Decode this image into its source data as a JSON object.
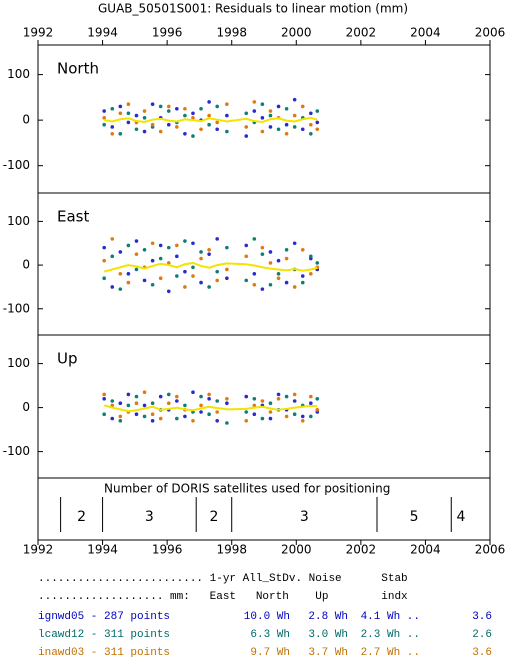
{
  "chart_data": {
    "type": "scatter",
    "title": "GUAB_50501S001: Residuals to linear motion (mm)",
    "xlim": [
      1992,
      2006
    ],
    "xticks": [
      1992,
      1994,
      1996,
      1998,
      2000,
      2002,
      2004,
      2006
    ],
    "ylim": [
      -160,
      165
    ],
    "yticks": [
      -100,
      0,
      100
    ],
    "x": [
      1994.05,
      1994.3,
      1994.55,
      1994.8,
      1995.05,
      1995.3,
      1995.55,
      1995.8,
      1996.05,
      1996.3,
      1996.55,
      1996.8,
      1997.05,
      1997.3,
      1997.55,
      1997.85,
      1998.45,
      1998.7,
      1998.95,
      1999.2,
      1999.45,
      1999.7,
      1999.95,
      2000.2,
      2000.45,
      2000.65
    ],
    "panels": [
      {
        "label": "North",
        "series": [
          {
            "color": "#2a2ad0",
            "values": [
              20,
              -15,
              30,
              -5,
              10,
              -25,
              35,
              5,
              -10,
              25,
              -30,
              15,
              0,
              40,
              -20,
              10,
              -35,
              20,
              5,
              -15,
              30,
              -10,
              45,
              -20,
              15,
              -5
            ]
          },
          {
            "color": "#0e7f74",
            "values": [
              -10,
              25,
              -30,
              15,
              -20,
              5,
              -15,
              30,
              20,
              -5,
              10,
              -35,
              25,
              -10,
              30,
              -25,
              15,
              -5,
              35,
              10,
              -20,
              25,
              -15,
              5,
              -30,
              20
            ]
          },
          {
            "color": "#e07a10",
            "values": [
              5,
              -30,
              15,
              35,
              -5,
              20,
              -10,
              -25,
              30,
              -15,
              25,
              5,
              -20,
              10,
              -5,
              35,
              -15,
              40,
              -25,
              20,
              5,
              -30,
              10,
              30,
              -10,
              -20
            ]
          }
        ],
        "trend": {
          "color": "#f2e400",
          "values": [
            0,
            -3,
            2,
            4,
            -2,
            -4,
            1,
            3,
            -1,
            -3,
            2,
            0,
            -2,
            4,
            1,
            -3,
            3,
            -2,
            -4,
            2,
            4,
            -1,
            -3,
            2,
            5,
            1
          ]
        }
      },
      {
        "label": "East",
        "series": [
          {
            "color": "#2a2ad0",
            "values": [
              40,
              -50,
              30,
              -20,
              55,
              -35,
              10,
              45,
              -60,
              20,
              -15,
              50,
              -40,
              25,
              60,
              -30,
              45,
              -20,
              -55,
              30,
              10,
              -40,
              50,
              -25,
              15,
              -10
            ]
          },
          {
            "color": "#0e7f74",
            "values": [
              -30,
              20,
              -55,
              45,
              -10,
              35,
              -45,
              15,
              40,
              -25,
              55,
              -5,
              30,
              -50,
              -15,
              40,
              -35,
              60,
              25,
              -45,
              -20,
              35,
              -10,
              -40,
              20,
              5
            ]
          },
          {
            "color": "#e07a10",
            "values": [
              10,
              60,
              -20,
              -40,
              25,
              -5,
              50,
              -30,
              5,
              45,
              -50,
              -25,
              15,
              35,
              -35,
              -10,
              20,
              -45,
              40,
              5,
              -30,
              15,
              -50,
              35,
              -20,
              -5
            ]
          }
        ],
        "trend": {
          "color": "#f2e400",
          "values": [
            -15,
            -10,
            -5,
            0,
            -3,
            -8,
            -2,
            3,
            0,
            -5,
            2,
            5,
            -2,
            -6,
            0,
            4,
            2,
            -1,
            -5,
            -8,
            -10,
            -12,
            -9,
            -13,
            -10,
            -6
          ]
        }
      },
      {
        "label": "Up",
        "series": [
          {
            "color": "#2a2ad0",
            "values": [
              20,
              -25,
              10,
              30,
              -15,
              5,
              -30,
              25,
              -5,
              15,
              -20,
              35,
              -10,
              20,
              -30,
              10,
              25,
              -15,
              5,
              -25,
              30,
              -5,
              15,
              -20,
              10,
              -10
            ]
          },
          {
            "color": "#0e7f74",
            "values": [
              -15,
              15,
              -30,
              5,
              25,
              -20,
              10,
              -5,
              30,
              -25,
              5,
              -10,
              25,
              -15,
              15,
              -35,
              -10,
              20,
              -25,
              10,
              -5,
              25,
              -15,
              5,
              -20,
              20
            ]
          },
          {
            "color": "#e07a10",
            "values": [
              30,
              5,
              -20,
              -10,
              10,
              35,
              -15,
              -25,
              10,
              25,
              -5,
              -30,
              5,
              30,
              -10,
              20,
              -30,
              5,
              15,
              -10,
              20,
              -20,
              30,
              -30,
              25,
              -5
            ]
          }
        ],
        "trend": {
          "color": "#f2e400",
          "values": [
            5,
            0,
            -4,
            -8,
            -6,
            -2,
            2,
            -5,
            -3,
            0,
            -4,
            -6,
            -2,
            2,
            -1,
            -4,
            -3,
            0,
            2,
            -2,
            -5,
            -3,
            0,
            2,
            4,
            3
          ]
        }
      }
    ],
    "satellites": {
      "title": "Number of DORIS satellites used for positioning",
      "periods": [
        {
          "start": 1992.7,
          "end": 1994.0,
          "count": 2
        },
        {
          "start": 1994.0,
          "end": 1996.9,
          "count": 3
        },
        {
          "start": 1996.9,
          "end": 1998.0,
          "count": 2
        },
        {
          "start": 1998.0,
          "end": 2002.5,
          "count": 3
        },
        {
          "start": 2002.5,
          "end": 2004.8,
          "count": 5
        },
        {
          "start": 2004.8,
          "end": 2005.4,
          "count": 4
        }
      ]
    },
    "table": {
      "header": [
        "......................... 1-yr All_StDv. Noise      Stab",
        "................... mm:   East   North    Up        indx"
      ],
      "rows": [
        {
          "label": "ignwd05 - 287 points",
          "color": "#0000c0",
          "cells": [
            "10.0 Wh",
            "2.8 Wh",
            "4.1 Wh ..",
            "3.6"
          ]
        },
        {
          "label": "lcawd12 - 311 points",
          "color": "#006a6a",
          "cells": [
            "6.3 Wh",
            "3.0 Wh",
            "2.3 Wh ..",
            "2.6"
          ]
        },
        {
          "label": "inawd03 - 311 points",
          "color": "#c07000",
          "cells": [
            "9.7 Wh",
            "3.7 Wh",
            "2.7 Wh ..",
            "3.6"
          ]
        }
      ]
    }
  }
}
